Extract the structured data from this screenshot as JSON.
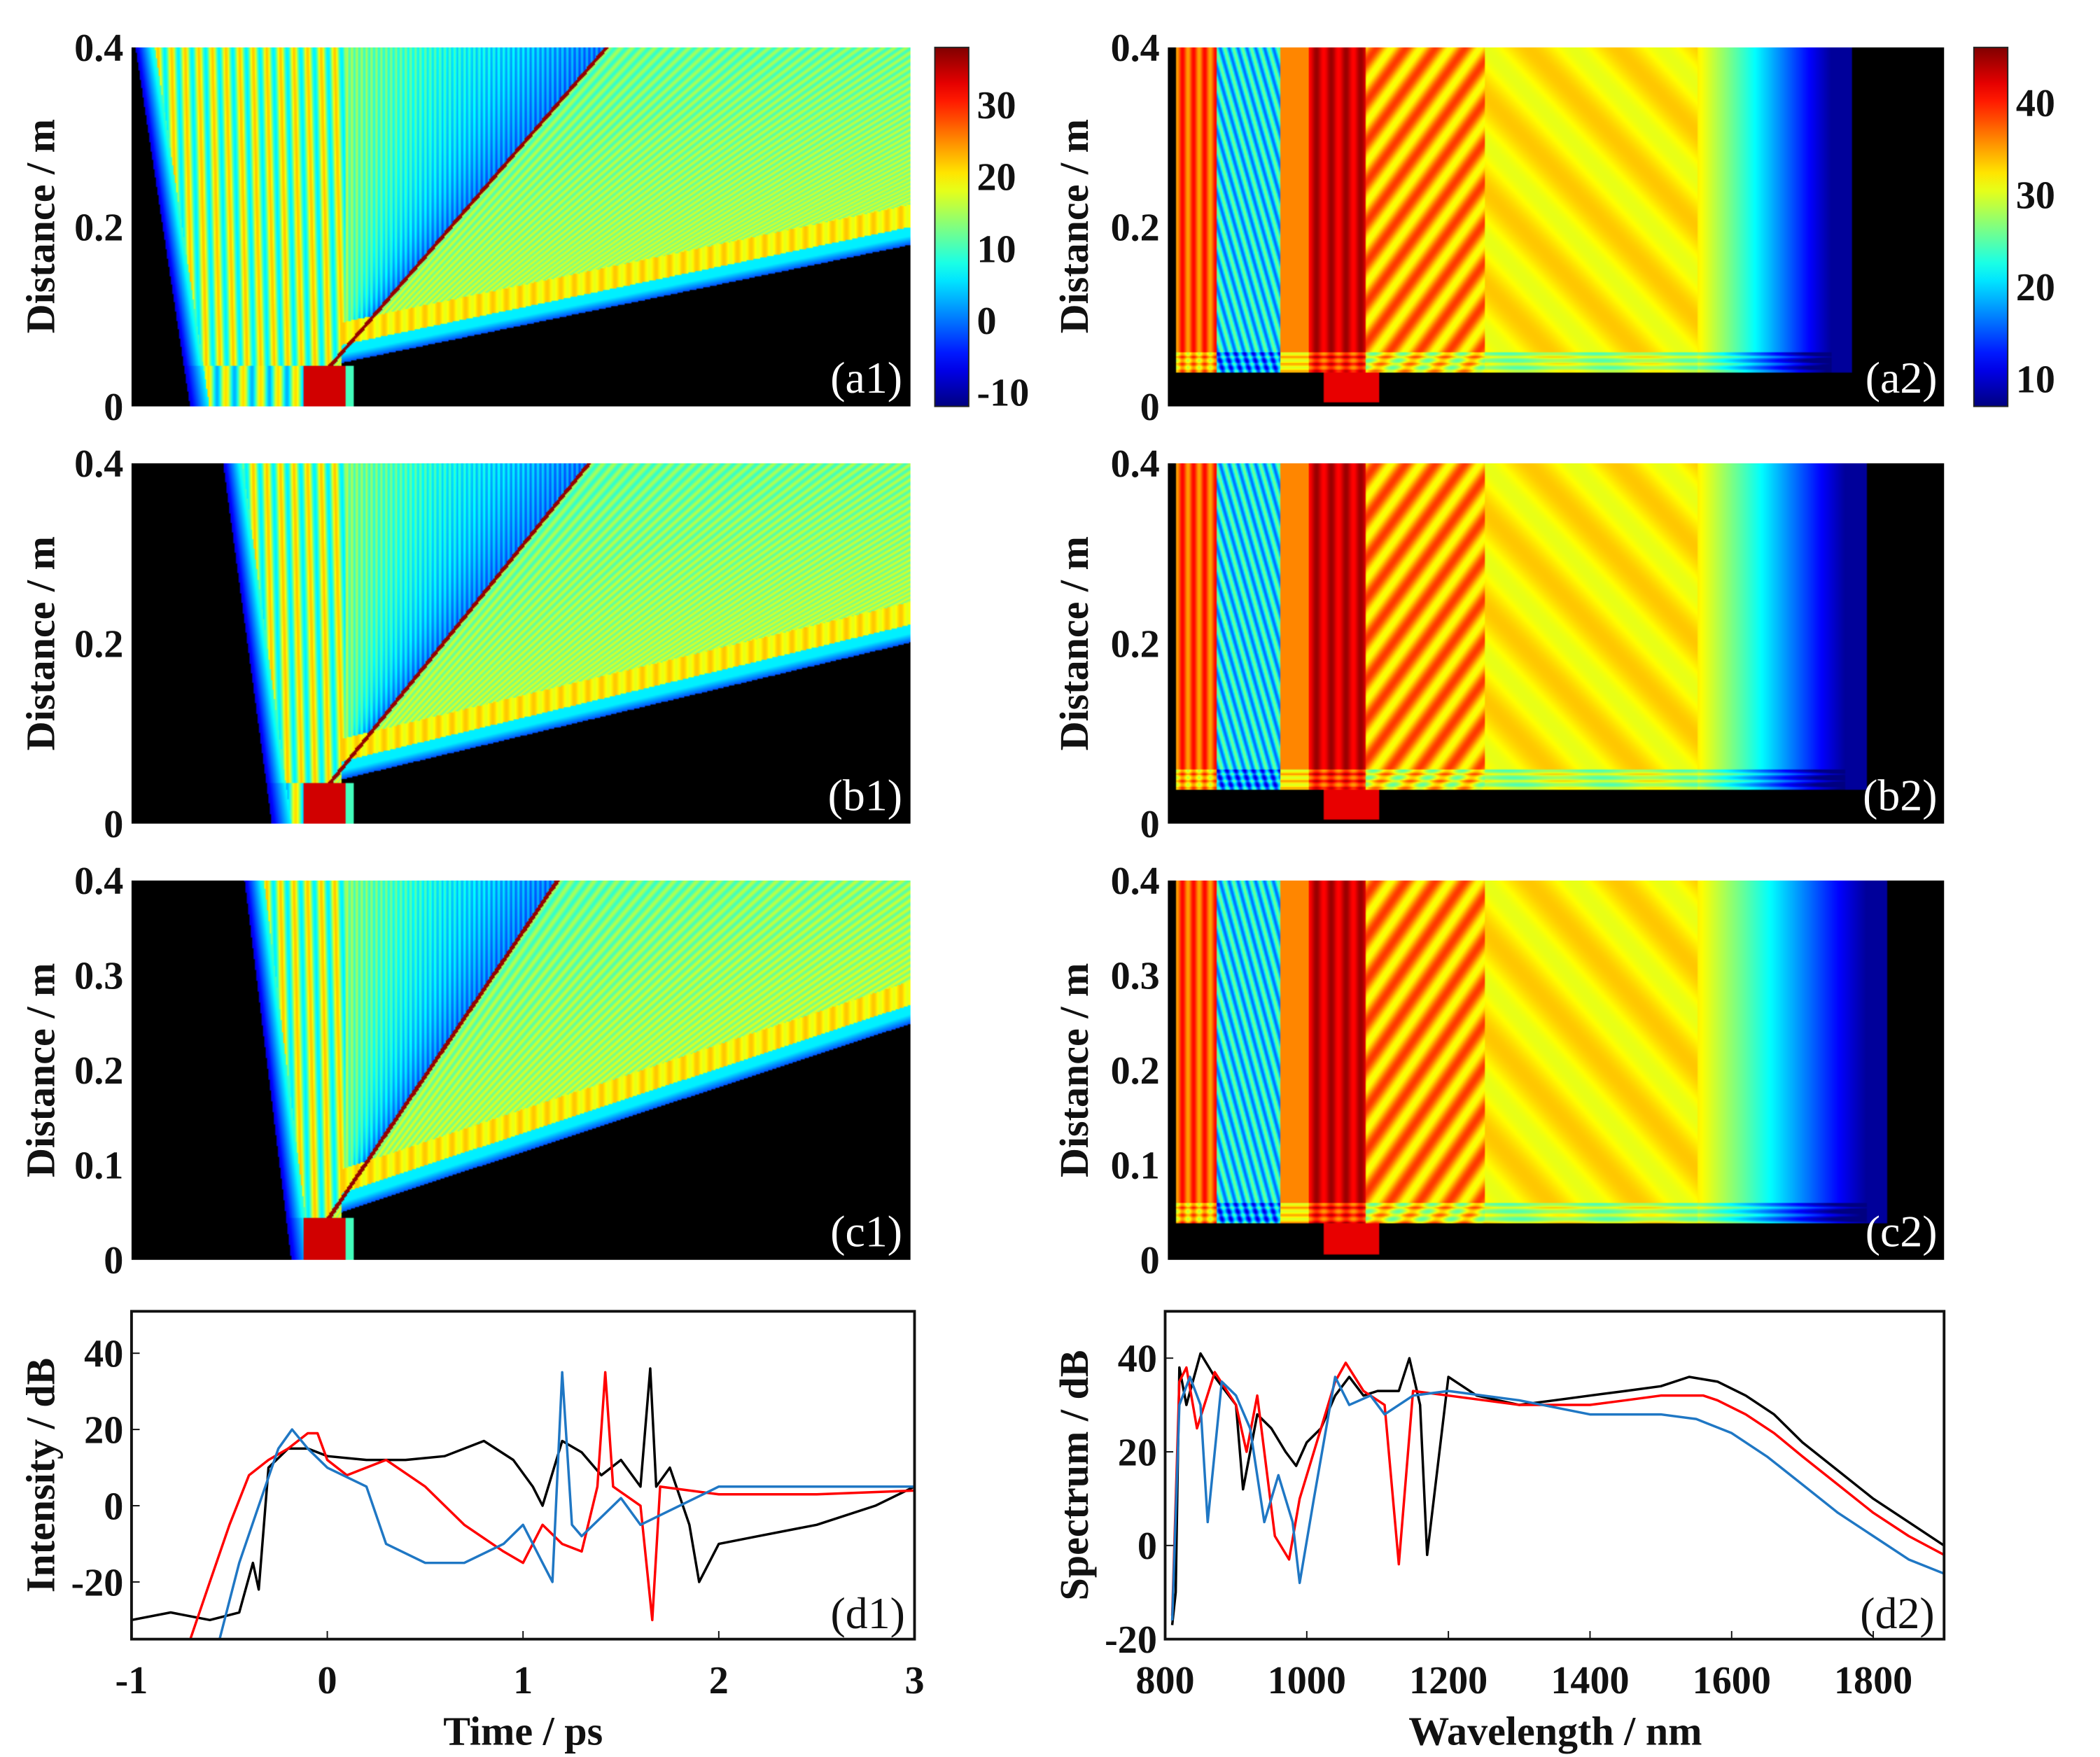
{
  "chart_data": [
    {
      "id": "a1",
      "type": "heatmap",
      "panel_label": "(a1)",
      "ylabel": "Distance / m",
      "xlim": [
        -1,
        3
      ],
      "ylim": [
        0,
        0.4
      ],
      "yticks": [
        {
          "v": 0.4,
          "label": "0.4"
        },
        {
          "v": 0.2,
          "label": "0.2"
        },
        {
          "v": 0,
          "label": "0"
        }
      ],
      "colorbar": {
        "range": [
          -12,
          38
        ],
        "ticks": [
          {
            "v": 30,
            "label": "30"
          },
          {
            "v": 20,
            "label": "20"
          },
          {
            "v": 10,
            "label": "10"
          },
          {
            "v": 0,
            "label": "0"
          },
          {
            "v": -10,
            "label": "-10"
          }
        ]
      }
    },
    {
      "id": "a2",
      "type": "heatmap",
      "panel_label": "(a2)",
      "ylabel": "Distance / m",
      "xlim": [
        800,
        1900
      ],
      "ylim": [
        0,
        0.4
      ],
      "yticks": [
        {
          "v": 0.4,
          "label": "0.4"
        },
        {
          "v": 0.2,
          "label": "0.2"
        },
        {
          "v": 0,
          "label": "0"
        }
      ],
      "colorbar": {
        "range": [
          7,
          46
        ],
        "ticks": [
          {
            "v": 40,
            "label": "40"
          },
          {
            "v": 30,
            "label": "30"
          },
          {
            "v": 20,
            "label": "20"
          },
          {
            "v": 10,
            "label": "10"
          }
        ]
      }
    },
    {
      "id": "b1",
      "type": "heatmap",
      "panel_label": "(b1)",
      "ylabel": "Distance / m",
      "xlim": [
        -1,
        3
      ],
      "ylim": [
        0,
        0.4
      ],
      "yticks": [
        {
          "v": 0.4,
          "label": "0.4"
        },
        {
          "v": 0.2,
          "label": "0.2"
        },
        {
          "v": 0,
          "label": "0"
        }
      ]
    },
    {
      "id": "b2",
      "type": "heatmap",
      "panel_label": "(b2)",
      "ylabel": "Distance / m",
      "xlim": [
        800,
        1900
      ],
      "ylim": [
        0,
        0.4
      ],
      "yticks": [
        {
          "v": 0.4,
          "label": "0.4"
        },
        {
          "v": 0.2,
          "label": "0.2"
        },
        {
          "v": 0,
          "label": "0"
        }
      ]
    },
    {
      "id": "c1",
      "type": "heatmap",
      "panel_label": "(c1)",
      "ylabel": "Distance / m",
      "xlim": [
        -1,
        3
      ],
      "ylim": [
        0,
        0.4
      ],
      "yticks": [
        {
          "v": 0.4,
          "label": "0.4"
        },
        {
          "v": 0.3,
          "label": "0.3"
        },
        {
          "v": 0.2,
          "label": "0.2"
        },
        {
          "v": 0.1,
          "label": "0.1"
        },
        {
          "v": 0,
          "label": "0"
        }
      ]
    },
    {
      "id": "c2",
      "type": "heatmap",
      "panel_label": "(c2)",
      "ylabel": "Distance / m",
      "xlim": [
        800,
        1900
      ],
      "ylim": [
        0,
        0.4
      ],
      "yticks": [
        {
          "v": 0.4,
          "label": "0.4"
        },
        {
          "v": 0.3,
          "label": "0.3"
        },
        {
          "v": 0.2,
          "label": "0.2"
        },
        {
          "v": 0.1,
          "label": "0.1"
        },
        {
          "v": 0,
          "label": "0"
        }
      ]
    },
    {
      "id": "d1",
      "type": "line",
      "panel_label": "(d1)",
      "xlabel": "Time / ps",
      "ylabel": "Intensity / dB",
      "xlim": [
        -1,
        3
      ],
      "ylim": [
        -35,
        51
      ],
      "xticks": [
        {
          "v": -1,
          "label": "-1"
        },
        {
          "v": 0,
          "label": "0"
        },
        {
          "v": 1,
          "label": "1"
        },
        {
          "v": 2,
          "label": "2"
        },
        {
          "v": 3,
          "label": "3"
        }
      ],
      "yticks": [
        {
          "v": 40,
          "label": "40"
        },
        {
          "v": 20,
          "label": "20"
        },
        {
          "v": 0,
          "label": "0"
        },
        {
          "v": -20,
          "label": "-20"
        }
      ],
      "series": [
        {
          "color": "#000000",
          "x": [
            -1,
            -0.8,
            -0.6,
            -0.45,
            -0.38,
            -0.35,
            -0.3,
            -0.2,
            -0.1,
            0,
            0.2,
            0.4,
            0.6,
            0.8,
            0.95,
            1.05,
            1.1,
            1.2,
            1.3,
            1.4,
            1.5,
            1.6,
            1.65,
            1.68,
            1.75,
            1.85,
            1.9,
            2.0,
            2.2,
            2.5,
            2.8,
            3.0
          ],
          "y": [
            -30,
            -28,
            -30,
            -28,
            -15,
            -22,
            10,
            15,
            15,
            13,
            12,
            12,
            13,
            17,
            12,
            5,
            0,
            17,
            14,
            8,
            12,
            5,
            36,
            5,
            10,
            -5,
            -20,
            -10,
            -8,
            -5,
            0,
            5
          ]
        },
        {
          "color": "#ff0000",
          "x": [
            -0.7,
            -0.6,
            -0.5,
            -0.4,
            -0.3,
            -0.2,
            -0.1,
            -0.05,
            0,
            0.1,
            0.3,
            0.5,
            0.7,
            0.9,
            1.0,
            1.1,
            1.2,
            1.3,
            1.38,
            1.42,
            1.46,
            1.6,
            1.66,
            1.7,
            2.0,
            2.5,
            3.0
          ],
          "y": [
            -35,
            -20,
            -5,
            8,
            12,
            15,
            19,
            19,
            12,
            8,
            12,
            5,
            -5,
            -12,
            -15,
            -5,
            -10,
            -12,
            5,
            35,
            5,
            0,
            -30,
            5,
            3,
            3,
            4
          ]
        },
        {
          "color": "#1f77c4",
          "x": [
            -0.55,
            -0.45,
            -0.35,
            -0.25,
            -0.18,
            -0.1,
            0,
            0.2,
            0.3,
            0.5,
            0.7,
            0.9,
            1.0,
            1.1,
            1.15,
            1.2,
            1.25,
            1.3,
            1.5,
            1.6,
            2.0,
            2.5,
            3.0
          ],
          "y": [
            -35,
            -15,
            0,
            15,
            20,
            15,
            10,
            5,
            -10,
            -15,
            -15,
            -10,
            -5,
            -15,
            -20,
            35,
            -5,
            -8,
            2,
            -5,
            5,
            5,
            5
          ]
        }
      ]
    },
    {
      "id": "d2",
      "type": "line",
      "panel_label": "(d2)",
      "xlabel": "Wavelength / nm",
      "ylabel": "Spectrum / dB",
      "xlim": [
        800,
        1900
      ],
      "ylim": [
        -20,
        50
      ],
      "xticks": [
        {
          "v": 800,
          "label": "800"
        },
        {
          "v": 1000,
          "label": "1000"
        },
        {
          "v": 1200,
          "label": "1200"
        },
        {
          "v": 1400,
          "label": "1400"
        },
        {
          "v": 1600,
          "label": "1600"
        },
        {
          "v": 1800,
          "label": "1800"
        }
      ],
      "yticks": [
        {
          "v": 40,
          "label": "40"
        },
        {
          "v": 20,
          "label": "20"
        },
        {
          "v": 0,
          "label": "0"
        },
        {
          "v": -20,
          "label": "-20"
        }
      ],
      "series": [
        {
          "color": "#000000",
          "x": [
            810,
            815,
            820,
            830,
            850,
            870,
            900,
            910,
            930,
            950,
            970,
            985,
            1000,
            1020,
            1040,
            1060,
            1080,
            1100,
            1130,
            1145,
            1160,
            1170,
            1200,
            1240,
            1300,
            1350,
            1400,
            1450,
            1500,
            1540,
            1580,
            1620,
            1660,
            1700,
            1750,
            1800,
            1850,
            1900
          ],
          "y": [
            -17,
            -10,
            38,
            30,
            41,
            36,
            30,
            12,
            28,
            25,
            20,
            17,
            22,
            25,
            32,
            36,
            32,
            33,
            33,
            40,
            30,
            -2,
            36,
            32,
            30,
            31,
            32,
            33,
            34,
            36,
            35,
            32,
            28,
            22,
            16,
            10,
            5,
            0
          ]
        },
        {
          "color": "#ff0000",
          "x": [
            810,
            820,
            830,
            845,
            870,
            900,
            915,
            930,
            955,
            975,
            990,
            1010,
            1040,
            1055,
            1080,
            1110,
            1130,
            1150,
            1200,
            1300,
            1400,
            1450,
            1500,
            1560,
            1580,
            1620,
            1660,
            1700,
            1750,
            1800,
            1850,
            1900
          ],
          "y": [
            -15,
            35,
            38,
            25,
            37,
            30,
            20,
            32,
            2,
            -3,
            10,
            20,
            35,
            39,
            33,
            30,
            -4,
            33,
            32,
            30,
            30,
            31,
            32,
            32,
            31,
            28,
            24,
            19,
            13,
            7,
            2,
            -2
          ]
        },
        {
          "color": "#1f77c4",
          "x": [
            810,
            820,
            835,
            850,
            860,
            880,
            900,
            920,
            940,
            960,
            980,
            990,
            1010,
            1040,
            1060,
            1090,
            1110,
            1150,
            1200,
            1300,
            1400,
            1500,
            1550,
            1600,
            1650,
            1700,
            1750,
            1800,
            1850,
            1900
          ],
          "y": [
            -16,
            30,
            36,
            30,
            5,
            35,
            32,
            25,
            5,
            15,
            5,
            -8,
            10,
            36,
            30,
            32,
            28,
            32,
            33,
            31,
            28,
            28,
            27,
            24,
            19,
            13,
            7,
            2,
            -3,
            -6
          ]
        }
      ]
    }
  ]
}
